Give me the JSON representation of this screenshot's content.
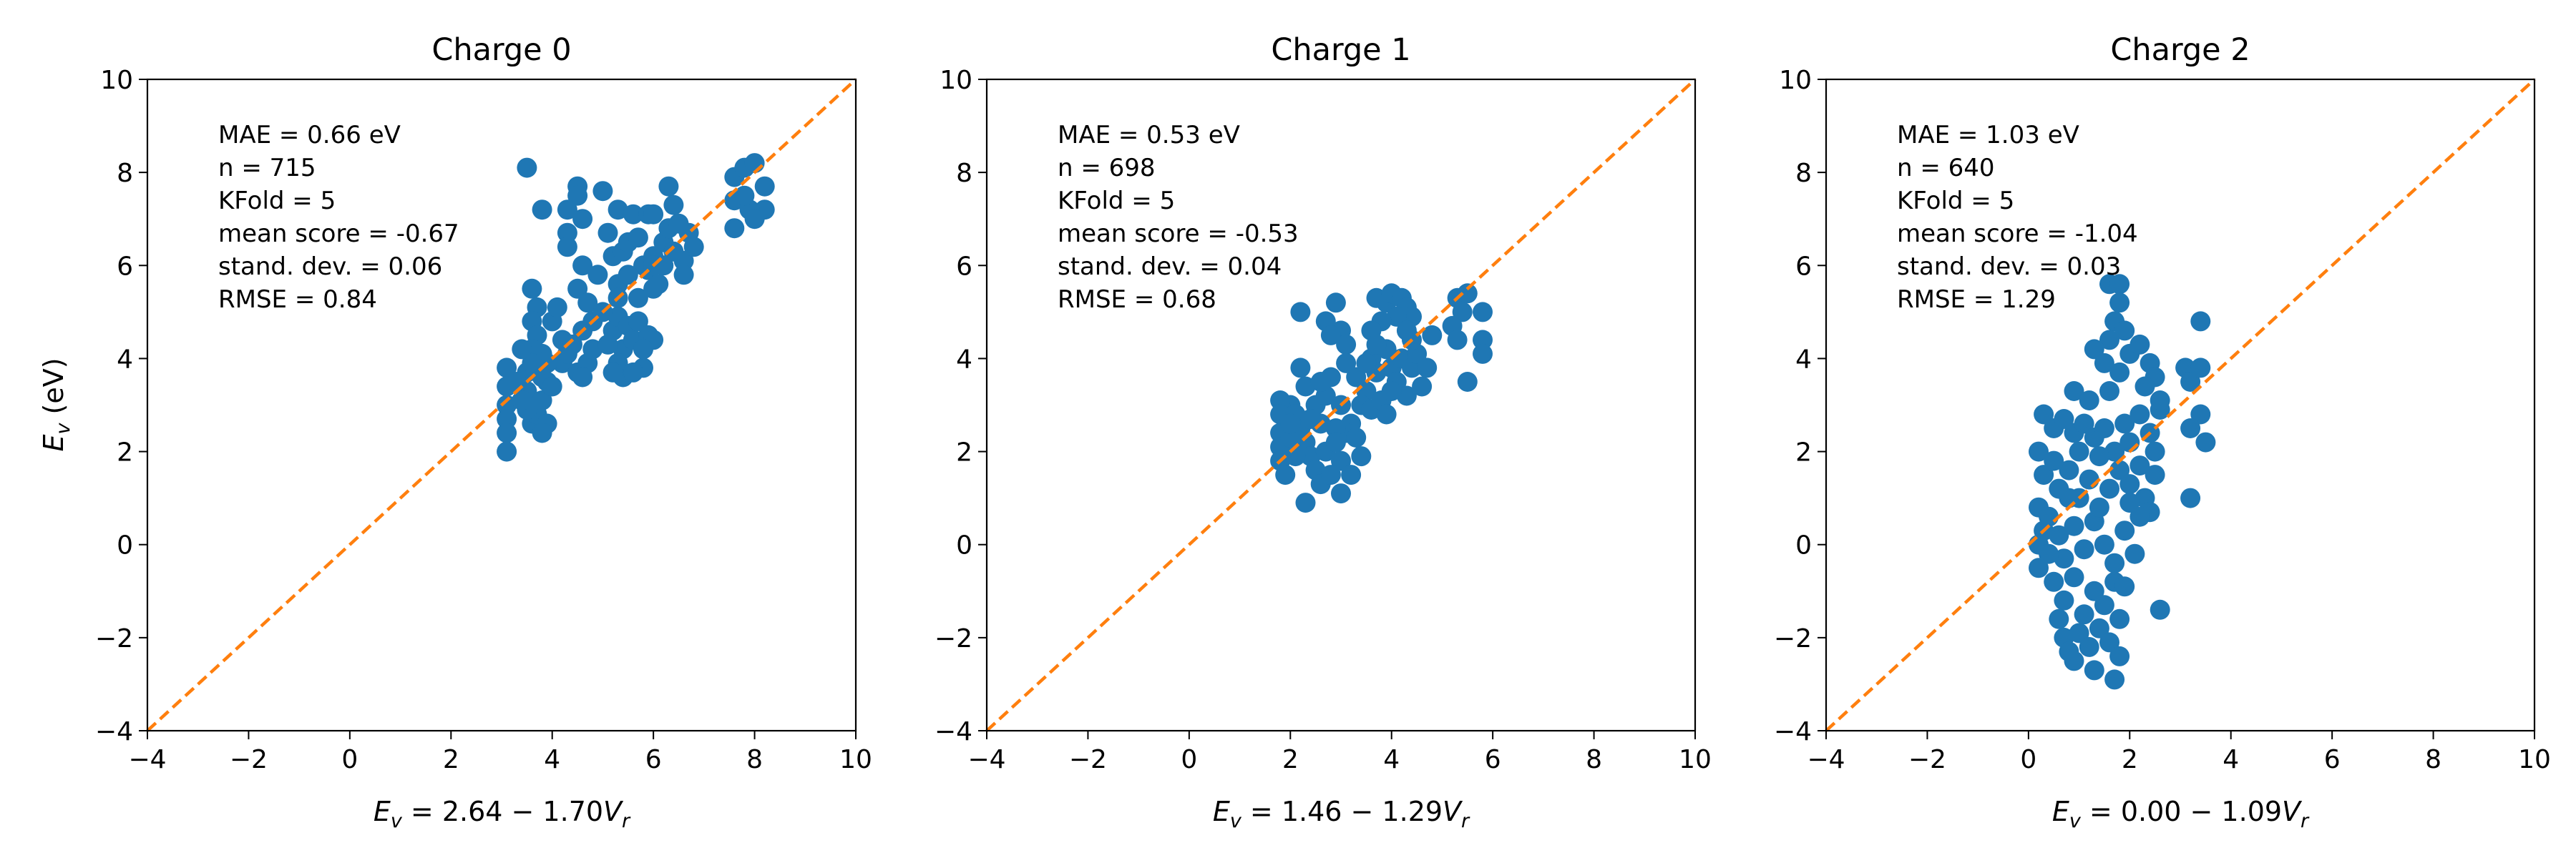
{
  "figure": {
    "ylabel_symbol": "E",
    "ylabel_subscript": "v",
    "ylabel_unit": " (eV)"
  },
  "chart_data": [
    {
      "type": "scatter",
      "title": "Charge 0",
      "xlabel": {
        "lhs": "E",
        "lhs_sub": "v",
        "eq": " = 2.64 − 1.70",
        "rhs": "V",
        "rhs_sub": "r"
      },
      "xlim": [
        -4,
        10
      ],
      "ylim": [
        -4,
        10
      ],
      "xticks": [
        -4,
        -2,
        0,
        2,
        4,
        6,
        8,
        10
      ],
      "yticks": [
        -4,
        -2,
        0,
        2,
        4,
        6,
        8,
        10
      ],
      "grid": false,
      "stats": [
        "MAE = 0.66 eV",
        "n = 715",
        "KFold = 5",
        "mean score = -0.67",
        "stand. dev. = 0.06",
        "RMSE = 0.84"
      ],
      "point_color": "#1f77b4",
      "line_color": "#ff7f0e",
      "reference_line": {
        "from": [
          -4,
          -4
        ],
        "to": [
          10,
          10
        ],
        "style": "dashed"
      },
      "points": [
        [
          3.5,
          8.1
        ],
        [
          3.8,
          7.2
        ],
        [
          4.5,
          7.7
        ],
        [
          4.5,
          7.5
        ],
        [
          5.0,
          7.6
        ],
        [
          4.3,
          7.2
        ],
        [
          4.6,
          7.0
        ],
        [
          5.3,
          7.2
        ],
        [
          5.6,
          7.1
        ],
        [
          5.9,
          7.1
        ],
        [
          6.0,
          7.1
        ],
        [
          6.3,
          7.7
        ],
        [
          6.4,
          7.3
        ],
        [
          6.7,
          6.7
        ],
        [
          6.6,
          6.1
        ],
        [
          6.6,
          5.8
        ],
        [
          7.6,
          7.9
        ],
        [
          7.6,
          7.4
        ],
        [
          7.8,
          8.1
        ],
        [
          8.0,
          8.2
        ],
        [
          8.2,
          7.7
        ],
        [
          8.2,
          7.2
        ],
        [
          7.9,
          7.2
        ],
        [
          7.6,
          6.8
        ],
        [
          7.8,
          7.5
        ],
        [
          8.0,
          7.0
        ],
        [
          4.3,
          6.7
        ],
        [
          4.3,
          6.4
        ],
        [
          4.6,
          6.0
        ],
        [
          4.5,
          5.5
        ],
        [
          4.9,
          5.8
        ],
        [
          4.7,
          5.2
        ],
        [
          5.1,
          6.7
        ],
        [
          5.2,
          6.2
        ],
        [
          5.4,
          6.3
        ],
        [
          5.5,
          6.5
        ],
        [
          5.7,
          6.6
        ],
        [
          5.8,
          6.0
        ],
        [
          6.0,
          6.2
        ],
        [
          6.2,
          6.5
        ],
        [
          6.3,
          6.8
        ],
        [
          6.4,
          6.3
        ],
        [
          6.2,
          6.0
        ],
        [
          5.3,
          5.6
        ],
        [
          5.5,
          5.8
        ],
        [
          5.7,
          5.3
        ],
        [
          5.9,
          5.9
        ],
        [
          6.0,
          5.5
        ],
        [
          5.2,
          4.6
        ],
        [
          5.3,
          4.9
        ],
        [
          5.4,
          4.2
        ],
        [
          5.5,
          4.7
        ],
        [
          5.6,
          4.4
        ],
        [
          5.7,
          4.8
        ],
        [
          5.8,
          3.8
        ],
        [
          5.9,
          4.5
        ],
        [
          6.0,
          4.4
        ],
        [
          5.4,
          3.6
        ],
        [
          5.3,
          3.9
        ],
        [
          5.6,
          3.7
        ],
        [
          5.2,
          3.7
        ],
        [
          5.8,
          4.2
        ],
        [
          4.0,
          4.8
        ],
        [
          4.1,
          5.1
        ],
        [
          4.2,
          4.4
        ],
        [
          4.2,
          3.9
        ],
        [
          4.4,
          4.3
        ],
        [
          4.5,
          3.7
        ],
        [
          4.6,
          4.6
        ],
        [
          4.7,
          3.9
        ],
        [
          4.8,
          4.8
        ],
        [
          4.8,
          4.2
        ],
        [
          4.6,
          3.6
        ],
        [
          3.9,
          3.9
        ],
        [
          3.6,
          5.5
        ],
        [
          3.7,
          5.1
        ],
        [
          3.6,
          4.8
        ],
        [
          3.7,
          4.5
        ],
        [
          3.8,
          4.1
        ],
        [
          3.9,
          3.5
        ],
        [
          3.6,
          4.2
        ],
        [
          3.5,
          3.7
        ],
        [
          3.5,
          3.3
        ],
        [
          3.6,
          3.0
        ],
        [
          3.6,
          2.6
        ],
        [
          3.7,
          2.8
        ],
        [
          3.8,
          3.1
        ],
        [
          3.9,
          2.6
        ],
        [
          3.8,
          2.4
        ],
        [
          3.5,
          2.9
        ],
        [
          3.1,
          3.8
        ],
        [
          3.1,
          3.4
        ],
        [
          3.1,
          3.0
        ],
        [
          3.1,
          2.7
        ],
        [
          3.1,
          2.4
        ],
        [
          3.1,
          2.0
        ],
        [
          3.6,
          3.9
        ],
        [
          3.4,
          4.2
        ],
        [
          3.8,
          3.6
        ],
        [
          4.0,
          3.4
        ],
        [
          4.3,
          4.1
        ],
        [
          5.0,
          5.0
        ],
        [
          5.1,
          4.3
        ],
        [
          5.3,
          5.3
        ],
        [
          6.1,
          5.6
        ],
        [
          6.0,
          6.0
        ],
        [
          6.5,
          6.9
        ],
        [
          6.8,
          6.4
        ],
        [
          3.3,
          3.5
        ],
        [
          3.4,
          3.1
        ]
      ]
    },
    {
      "type": "scatter",
      "title": "Charge 1",
      "xlabel": {
        "lhs": "E",
        "lhs_sub": "v",
        "eq": " = 1.46 − 1.29",
        "rhs": "V",
        "rhs_sub": "r"
      },
      "xlim": [
        -4,
        10
      ],
      "ylim": [
        -4,
        10
      ],
      "xticks": [
        -4,
        -2,
        0,
        2,
        4,
        6,
        8,
        10
      ],
      "yticks": [
        -4,
        -2,
        0,
        2,
        4,
        6,
        8,
        10
      ],
      "grid": false,
      "stats": [
        "MAE = 0.53 eV",
        "n = 698",
        "KFold = 5",
        "mean score = -0.53",
        "stand. dev. = 0.04",
        "RMSE = 0.68"
      ],
      "point_color": "#1f77b4",
      "line_color": "#ff7f0e",
      "reference_line": {
        "from": [
          -4,
          -4
        ],
        "to": [
          10,
          10
        ],
        "style": "dashed"
      },
      "points": [
        [
          2.2,
          5.0
        ],
        [
          2.9,
          5.2
        ],
        [
          2.7,
          4.8
        ],
        [
          3.0,
          4.6
        ],
        [
          2.8,
          4.5
        ],
        [
          3.1,
          4.3
        ],
        [
          3.7,
          5.3
        ],
        [
          3.9,
          5.2
        ],
        [
          4.0,
          5.4
        ],
        [
          4.2,
          5.3
        ],
        [
          4.3,
          5.1
        ],
        [
          4.4,
          4.9
        ],
        [
          4.1,
          4.9
        ],
        [
          3.8,
          4.8
        ],
        [
          3.6,
          4.6
        ],
        [
          5.3,
          5.3
        ],
        [
          5.4,
          5.0
        ],
        [
          5.5,
          5.4
        ],
        [
          5.8,
          5.0
        ],
        [
          5.8,
          4.4
        ],
        [
          5.8,
          4.1
        ],
        [
          5.5,
          3.5
        ],
        [
          5.2,
          4.7
        ],
        [
          5.3,
          4.4
        ],
        [
          3.6,
          4.0
        ],
        [
          3.7,
          3.7
        ],
        [
          3.9,
          4.2
        ],
        [
          4.0,
          3.8
        ],
        [
          4.1,
          3.5
        ],
        [
          4.2,
          4.0
        ],
        [
          4.4,
          3.8
        ],
        [
          4.5,
          4.1
        ],
        [
          4.6,
          3.4
        ],
        [
          4.7,
          3.8
        ],
        [
          4.3,
          3.2
        ],
        [
          3.5,
          3.3
        ],
        [
          3.4,
          3.0
        ],
        [
          3.6,
          2.9
        ],
        [
          3.8,
          3.1
        ],
        [
          3.9,
          2.8
        ],
        [
          4.0,
          3.3
        ],
        [
          3.3,
          3.6
        ],
        [
          3.2,
          2.6
        ],
        [
          2.2,
          3.8
        ],
        [
          2.3,
          3.4
        ],
        [
          2.5,
          3.0
        ],
        [
          2.7,
          3.2
        ],
        [
          2.8,
          3.6
        ],
        [
          3.0,
          3.0
        ],
        [
          3.1,
          2.4
        ],
        [
          2.0,
          3.0
        ],
        [
          1.8,
          3.1
        ],
        [
          1.8,
          2.8
        ],
        [
          1.8,
          2.4
        ],
        [
          1.8,
          2.1
        ],
        [
          1.8,
          1.8
        ],
        [
          1.9,
          1.5
        ],
        [
          2.1,
          2.8
        ],
        [
          2.2,
          2.5
        ],
        [
          2.3,
          2.2
        ],
        [
          2.4,
          1.9
        ],
        [
          2.5,
          1.6
        ],
        [
          2.3,
          0.9
        ],
        [
          2.6,
          1.3
        ],
        [
          2.7,
          2.0
        ],
        [
          2.9,
          2.5
        ],
        [
          3.0,
          1.8
        ],
        [
          3.0,
          1.1
        ],
        [
          3.2,
          1.5
        ],
        [
          2.0,
          2.3
        ],
        [
          2.1,
          1.9
        ],
        [
          2.6,
          2.6
        ],
        [
          2.9,
          2.2
        ],
        [
          3.3,
          2.3
        ],
        [
          3.4,
          1.9
        ],
        [
          2.4,
          2.7
        ],
        [
          3.5,
          3.9
        ],
        [
          4.8,
          4.5
        ],
        [
          4.4,
          4.4
        ],
        [
          3.1,
          3.9
        ],
        [
          2.6,
          3.5
        ],
        [
          2.0,
          2.6
        ],
        [
          2.8,
          1.5
        ],
        [
          3.7,
          4.3
        ],
        [
          4.3,
          4.6
        ]
      ]
    },
    {
      "type": "scatter",
      "title": "Charge 2",
      "xlabel": {
        "lhs": "E",
        "lhs_sub": "v",
        "eq": " = 0.00 − 1.09",
        "rhs": "V",
        "rhs_sub": "r"
      },
      "xlim": [
        -4,
        10
      ],
      "ylim": [
        -4,
        10
      ],
      "xticks": [
        -4,
        -2,
        0,
        2,
        4,
        6,
        8,
        10
      ],
      "yticks": [
        -4,
        -2,
        0,
        2,
        4,
        6,
        8,
        10
      ],
      "grid": false,
      "stats": [
        "MAE = 1.03 eV",
        "n = 640",
        "KFold = 5",
        "mean score = -1.04",
        "stand. dev. = 0.03",
        "RMSE = 1.29"
      ],
      "point_color": "#1f77b4",
      "line_color": "#ff7f0e",
      "reference_line": {
        "from": [
          -4,
          -4
        ],
        "to": [
          10,
          10
        ],
        "style": "dashed"
      },
      "points": [
        [
          1.6,
          5.6
        ],
        [
          1.8,
          5.6
        ],
        [
          1.8,
          5.2
        ],
        [
          1.7,
          4.8
        ],
        [
          1.9,
          4.6
        ],
        [
          1.6,
          4.4
        ],
        [
          1.3,
          4.2
        ],
        [
          1.5,
          3.9
        ],
        [
          1.8,
          3.7
        ],
        [
          2.0,
          4.1
        ],
        [
          2.2,
          4.3
        ],
        [
          2.4,
          3.9
        ],
        [
          2.5,
          3.6
        ],
        [
          0.9,
          3.3
        ],
        [
          1.2,
          3.1
        ],
        [
          1.6,
          3.3
        ],
        [
          3.1,
          3.8
        ],
        [
          3.2,
          3.5
        ],
        [
          3.4,
          4.8
        ],
        [
          3.4,
          3.8
        ],
        [
          3.4,
          2.8
        ],
        [
          3.5,
          2.2
        ],
        [
          3.2,
          2.5
        ],
        [
          3.2,
          1.0
        ],
        [
          2.6,
          -1.4
        ],
        [
          0.3,
          2.8
        ],
        [
          0.5,
          2.5
        ],
        [
          0.7,
          2.7
        ],
        [
          0.9,
          2.4
        ],
        [
          1.1,
          2.6
        ],
        [
          1.3,
          2.3
        ],
        [
          1.5,
          2.5
        ],
        [
          1.7,
          2.0
        ],
        [
          2.0,
          2.2
        ],
        [
          2.2,
          2.8
        ],
        [
          2.4,
          2.4
        ],
        [
          2.5,
          2.0
        ],
        [
          2.6,
          2.9
        ],
        [
          2.5,
          1.5
        ],
        [
          0.2,
          2.0
        ],
        [
          0.3,
          1.5
        ],
        [
          0.5,
          1.8
        ],
        [
          0.6,
          1.2
        ],
        [
          0.8,
          1.6
        ],
        [
          1.0,
          1.0
        ],
        [
          1.2,
          1.4
        ],
        [
          1.4,
          1.9
        ],
        [
          1.6,
          1.2
        ],
        [
          1.8,
          1.6
        ],
        [
          2.0,
          1.3
        ],
        [
          2.2,
          1.7
        ],
        [
          2.3,
          1.0
        ],
        [
          2.4,
          0.7
        ],
        [
          0.2,
          0.8
        ],
        [
          0.3,
          0.3
        ],
        [
          0.2,
          0.0
        ],
        [
          0.2,
          -0.5
        ],
        [
          0.4,
          0.6
        ],
        [
          0.6,
          0.2
        ],
        [
          0.7,
          -0.3
        ],
        [
          0.9,
          0.4
        ],
        [
          1.1,
          -0.1
        ],
        [
          1.3,
          0.5
        ],
        [
          1.5,
          0.0
        ],
        [
          1.7,
          -0.4
        ],
        [
          1.9,
          0.3
        ],
        [
          2.1,
          -0.2
        ],
        [
          2.2,
          0.6
        ],
        [
          0.5,
          -0.8
        ],
        [
          0.7,
          -1.2
        ],
        [
          0.9,
          -0.7
        ],
        [
          1.1,
          -1.5
        ],
        [
          1.3,
          -1.0
        ],
        [
          1.5,
          -1.3
        ],
        [
          1.7,
          -0.8
        ],
        [
          1.8,
          -1.6
        ],
        [
          0.6,
          -1.6
        ],
        [
          0.7,
          -2.0
        ],
        [
          0.8,
          -2.3
        ],
        [
          1.0,
          -1.9
        ],
        [
          1.2,
          -2.2
        ],
        [
          1.4,
          -1.8
        ],
        [
          1.6,
          -2.1
        ],
        [
          1.7,
          -2.9
        ],
        [
          1.3,
          -2.7
        ],
        [
          1.8,
          -2.4
        ],
        [
          0.9,
          -2.5
        ],
        [
          1.9,
          -0.9
        ],
        [
          0.4,
          -0.2
        ],
        [
          2.0,
          0.9
        ],
        [
          1.0,
          2.0
        ],
        [
          1.4,
          0.8
        ],
        [
          0.8,
          1.0
        ],
        [
          1.9,
          2.6
        ],
        [
          2.6,
          3.1
        ],
        [
          2.3,
          3.4
        ]
      ]
    }
  ]
}
